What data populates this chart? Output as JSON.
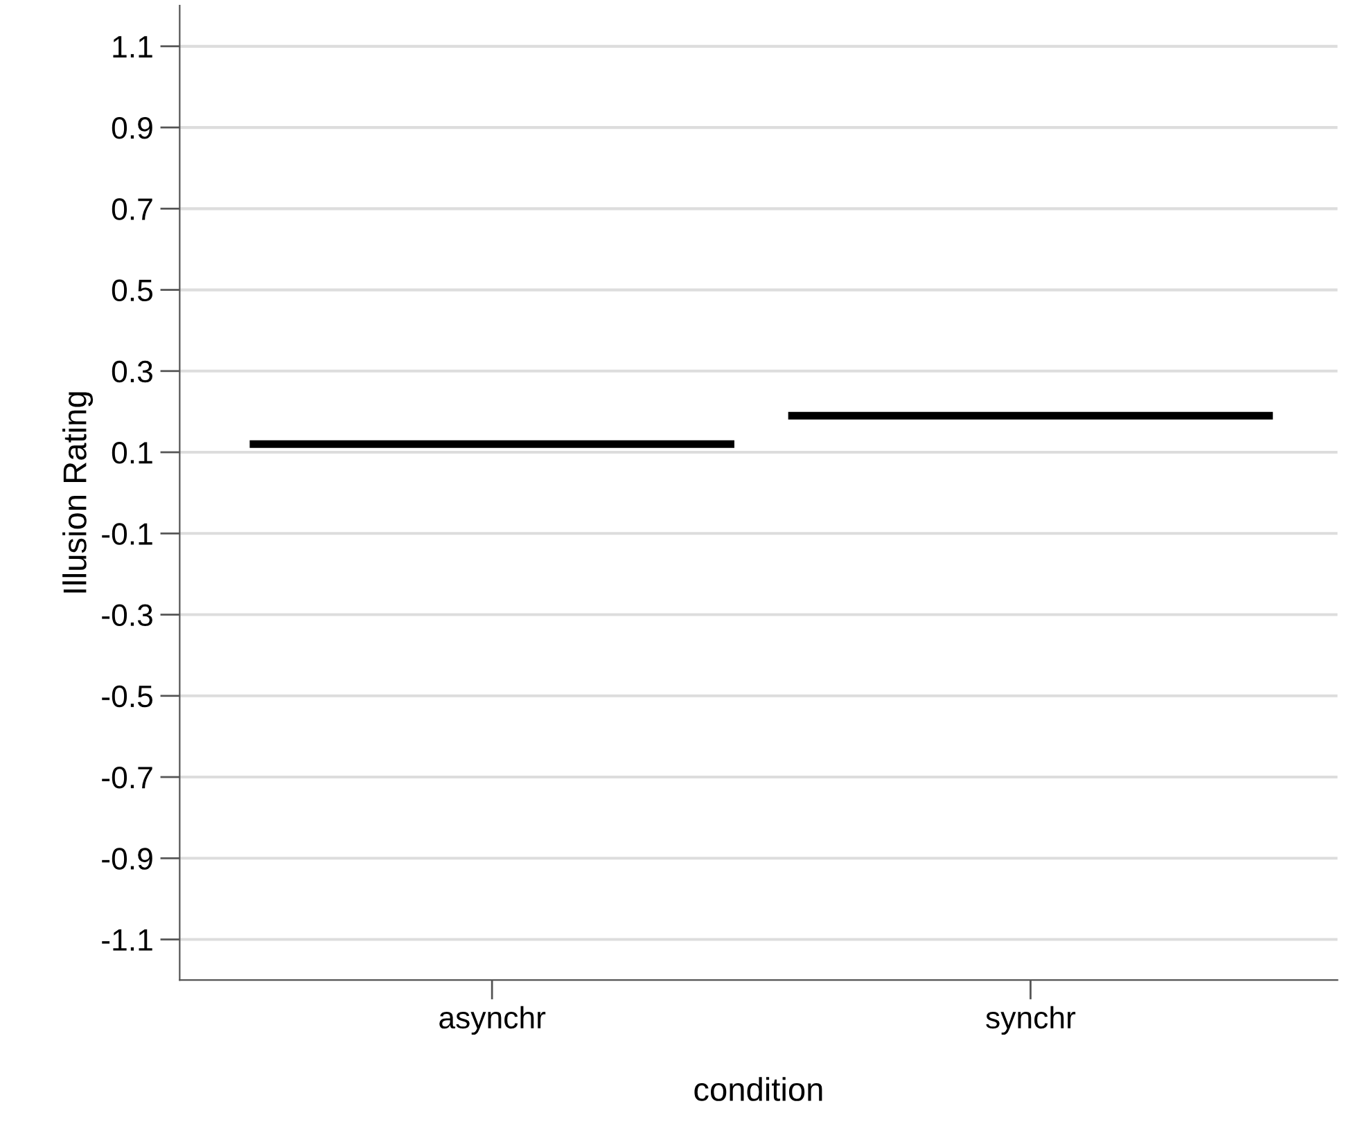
{
  "chart_data": {
    "type": "scatter",
    "xlabel": "condition",
    "ylabel": "Illusion Rating",
    "categories": [
      "asynchr",
      "synchr"
    ],
    "ref_lines": [
      {
        "axis": "y",
        "value": 0.12,
        "color": "#000000"
      },
      {
        "axis": "y",
        "value": 0.19,
        "color": "#000000"
      }
    ],
    "ylim": [
      -1.2,
      1.2
    ],
    "yticks": [
      1.1,
      0.9,
      0.7,
      0.5,
      0.3,
      0.1,
      -0.1,
      -0.3,
      -0.5,
      -0.7,
      -0.9,
      -1.1
    ],
    "grid": "y"
  }
}
